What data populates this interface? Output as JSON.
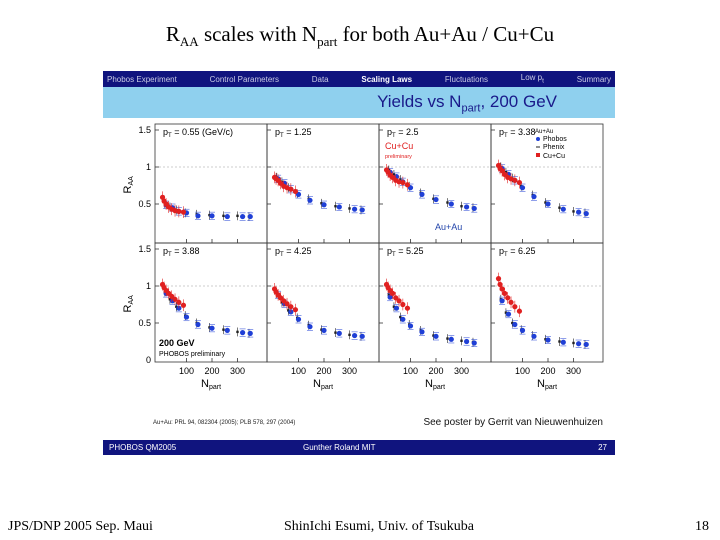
{
  "slide": {
    "title_prefix": "R",
    "title_sub_aa": "AA",
    "title_mid": " scales with N",
    "title_sub_part": "part",
    "title_suffix": " for both Au+Au / Cu+Cu"
  },
  "navbar": {
    "items": [
      "Phobos Experiment",
      "Control Parameters",
      "Data",
      "Scaling Laws",
      "Fluctuations",
      "Low p",
      "Summary"
    ],
    "low_pt_subscript": "t"
  },
  "banner": {
    "prefix": "Yields vs N",
    "sub": "part",
    "suffix": ", 200 GeV"
  },
  "legend": {
    "header": "Au+Au",
    "entries": [
      "Phobos",
      "Phenix",
      "Cu+Cu"
    ],
    "cucu_label": "Cu+Cu",
    "preliminary": "preliminary",
    "auau_label": "Au+Au",
    "energy": "200 GeV",
    "phobos_preliminary": "PHOBOS preliminary"
  },
  "refs": "Au+Au: PRL 94, 082304 (2005); PLB 578, 297 (2004)",
  "poster": "See poster by Gerrit van Nieuwenhuizen",
  "bottom_bar": {
    "left": "PHOBOS QM2005",
    "center": "Gunther Roland   MIT",
    "page": "27"
  },
  "footer": {
    "left": "JPS/DNP 2005 Sep. Maui",
    "center": "ShinIchi Esumi, Univ. of Tsukuba",
    "right": "18"
  },
  "colors": {
    "navy": "#10147e",
    "banner": "#8fd0ee",
    "phobos": "#1f3fd6",
    "phenix": "#222222",
    "cucu": "#e02020",
    "label_blue": "#2244aa"
  },
  "chart_data": {
    "type": "scatter",
    "title": "Yields vs Npart, 200 GeV",
    "ylabel": "RAA",
    "xlabel": "Npart",
    "xlim": [
      0,
      400
    ],
    "ylim": [
      0,
      1.5
    ],
    "xticks": [
      "100",
      "200",
      "300"
    ],
    "yticks": [
      "0",
      "0.5",
      "1",
      "1.5"
    ],
    "ytick_labels_top": [
      "0.5",
      "1",
      "1.5"
    ],
    "panels": [
      {
        "label": "p",
        "sub": "T",
        "value": " = 0.55 (GeV/c)",
        "phobos": [
          [
            20,
            0.49
          ],
          [
            45,
            0.45
          ],
          [
            70,
            0.4
          ],
          [
            100,
            0.38
          ],
          [
            145,
            0.34
          ],
          [
            200,
            0.34
          ],
          [
            260,
            0.33
          ],
          [
            320,
            0.33
          ],
          [
            350,
            0.33
          ]
        ],
        "phenix": [
          [
            15,
            0.5
          ],
          [
            35,
            0.46
          ],
          [
            60,
            0.42
          ],
          [
            95,
            0.38
          ],
          [
            140,
            0.36
          ],
          [
            190,
            0.35
          ],
          [
            245,
            0.34
          ],
          [
            300,
            0.34
          ],
          [
            345,
            0.33
          ]
        ],
        "cucu": [
          [
            6,
            0.59
          ],
          [
            12,
            0.54
          ],
          [
            20,
            0.5
          ],
          [
            30,
            0.46
          ],
          [
            42,
            0.43
          ],
          [
            55,
            0.41
          ],
          [
            70,
            0.4
          ],
          [
            88,
            0.39
          ]
        ]
      },
      {
        "label": "p",
        "sub": "T",
        "value": " = 1.25",
        "phobos": [
          [
            20,
            0.84
          ],
          [
            45,
            0.78
          ],
          [
            70,
            0.7
          ],
          [
            100,
            0.63
          ],
          [
            145,
            0.55
          ],
          [
            200,
            0.49
          ],
          [
            260,
            0.46
          ],
          [
            320,
            0.43
          ],
          [
            350,
            0.42
          ]
        ],
        "phenix": [
          [
            15,
            0.86
          ],
          [
            35,
            0.8
          ],
          [
            60,
            0.72
          ],
          [
            95,
            0.64
          ],
          [
            140,
            0.57
          ],
          [
            190,
            0.51
          ],
          [
            245,
            0.47
          ],
          [
            300,
            0.44
          ],
          [
            345,
            0.42
          ]
        ],
        "cucu": [
          [
            6,
            0.86
          ],
          [
            12,
            0.84
          ],
          [
            20,
            0.82
          ],
          [
            30,
            0.78
          ],
          [
            42,
            0.74
          ],
          [
            55,
            0.72
          ],
          [
            70,
            0.7
          ],
          [
            88,
            0.67
          ]
        ]
      },
      {
        "label": "p",
        "sub": "T",
        "value": " = 2.5",
        "phobos": [
          [
            20,
            0.93
          ],
          [
            45,
            0.87
          ],
          [
            70,
            0.8
          ],
          [
            100,
            0.72
          ],
          [
            145,
            0.63
          ],
          [
            200,
            0.56
          ],
          [
            260,
            0.5
          ],
          [
            320,
            0.46
          ],
          [
            350,
            0.44
          ]
        ],
        "phenix": [
          [
            15,
            0.96
          ],
          [
            35,
            0.9
          ],
          [
            60,
            0.83
          ],
          [
            95,
            0.74
          ],
          [
            140,
            0.65
          ],
          [
            190,
            0.57
          ],
          [
            245,
            0.52
          ],
          [
            300,
            0.47
          ],
          [
            345,
            0.45
          ]
        ],
        "cucu": [
          [
            6,
            0.96
          ],
          [
            12,
            0.93
          ],
          [
            20,
            0.89
          ],
          [
            30,
            0.86
          ],
          [
            42,
            0.82
          ],
          [
            55,
            0.8
          ],
          [
            70,
            0.79
          ],
          [
            88,
            0.76
          ]
        ]
      },
      {
        "label": "p",
        "sub": "T",
        "value": " = 3.38",
        "phobos": [
          [
            20,
            0.98
          ],
          [
            45,
            0.9
          ],
          [
            70,
            0.82
          ],
          [
            100,
            0.72
          ],
          [
            145,
            0.6
          ],
          [
            200,
            0.5
          ],
          [
            260,
            0.43
          ],
          [
            320,
            0.39
          ],
          [
            350,
            0.37
          ]
        ],
        "phenix": [
          [
            15,
            1.0
          ],
          [
            35,
            0.93
          ],
          [
            60,
            0.85
          ],
          [
            95,
            0.74
          ],
          [
            140,
            0.62
          ],
          [
            190,
            0.52
          ],
          [
            245,
            0.45
          ],
          [
            300,
            0.4
          ],
          [
            345,
            0.38
          ]
        ],
        "cucu": [
          [
            6,
            1.02
          ],
          [
            12,
            0.98
          ],
          [
            20,
            0.95
          ],
          [
            30,
            0.9
          ],
          [
            42,
            0.86
          ],
          [
            55,
            0.84
          ],
          [
            70,
            0.82
          ],
          [
            88,
            0.79
          ]
        ]
      },
      {
        "label": "p",
        "sub": "T",
        "value": " = 3.88",
        "phobos": [
          [
            20,
            0.9
          ],
          [
            45,
            0.8
          ],
          [
            70,
            0.7
          ],
          [
            100,
            0.58
          ],
          [
            145,
            0.48
          ],
          [
            200,
            0.43
          ],
          [
            260,
            0.4
          ],
          [
            320,
            0.37
          ],
          [
            350,
            0.36
          ]
        ],
        "phenix": [
          [
            15,
            0.92
          ],
          [
            35,
            0.82
          ],
          [
            60,
            0.72
          ],
          [
            95,
            0.6
          ],
          [
            140,
            0.5
          ],
          [
            190,
            0.44
          ],
          [
            245,
            0.41
          ],
          [
            300,
            0.38
          ],
          [
            345,
            0.36
          ]
        ],
        "cucu": [
          [
            6,
            1.02
          ],
          [
            12,
            0.98
          ],
          [
            20,
            0.94
          ],
          [
            30,
            0.9
          ],
          [
            42,
            0.86
          ],
          [
            55,
            0.82
          ],
          [
            70,
            0.78
          ],
          [
            88,
            0.74
          ]
        ]
      },
      {
        "label": "p",
        "sub": "T",
        "value": " = 4.25",
        "phobos": [
          [
            20,
            0.88
          ],
          [
            45,
            0.76
          ],
          [
            70,
            0.65
          ],
          [
            100,
            0.55
          ],
          [
            145,
            0.45
          ],
          [
            200,
            0.4
          ],
          [
            260,
            0.36
          ],
          [
            320,
            0.33
          ],
          [
            350,
            0.32
          ]
        ],
        "phenix": [
          [
            15,
            0.9
          ],
          [
            35,
            0.78
          ],
          [
            60,
            0.67
          ],
          [
            95,
            0.57
          ],
          [
            140,
            0.47
          ],
          [
            190,
            0.41
          ],
          [
            245,
            0.37
          ],
          [
            300,
            0.34
          ],
          [
            345,
            0.32
          ]
        ],
        "cucu": [
          [
            6,
            0.96
          ],
          [
            12,
            0.92
          ],
          [
            20,
            0.88
          ],
          [
            30,
            0.84
          ],
          [
            42,
            0.8
          ],
          [
            55,
            0.76
          ],
          [
            70,
            0.72
          ],
          [
            88,
            0.68
          ]
        ]
      },
      {
        "label": "p",
        "sub": "T",
        "value": " = 5.25",
        "phobos": [
          [
            20,
            0.85
          ],
          [
            45,
            0.7
          ],
          [
            70,
            0.55
          ],
          [
            100,
            0.46
          ],
          [
            145,
            0.38
          ],
          [
            200,
            0.32
          ],
          [
            260,
            0.28
          ],
          [
            320,
            0.25
          ],
          [
            350,
            0.23
          ]
        ],
        "phenix": [
          [
            15,
            0.88
          ],
          [
            35,
            0.72
          ],
          [
            60,
            0.58
          ],
          [
            95,
            0.48
          ],
          [
            140,
            0.4
          ],
          [
            190,
            0.33
          ],
          [
            245,
            0.29
          ],
          [
            300,
            0.26
          ],
          [
            345,
            0.24
          ]
        ],
        "cucu": [
          [
            6,
            1.02
          ],
          [
            12,
            0.98
          ],
          [
            20,
            0.94
          ],
          [
            30,
            0.9
          ],
          [
            42,
            0.84
          ],
          [
            55,
            0.8
          ],
          [
            70,
            0.75
          ],
          [
            88,
            0.7
          ]
        ]
      },
      {
        "label": "p",
        "sub": "T",
        "value": " = 6.25",
        "phobos": [
          [
            20,
            0.8
          ],
          [
            45,
            0.62
          ],
          [
            70,
            0.48
          ],
          [
            100,
            0.4
          ],
          [
            145,
            0.32
          ],
          [
            200,
            0.27
          ],
          [
            260,
            0.24
          ],
          [
            320,
            0.22
          ],
          [
            350,
            0.21
          ]
        ],
        "phenix": [
          [
            15,
            0.82
          ],
          [
            35,
            0.64
          ],
          [
            60,
            0.5
          ],
          [
            95,
            0.41
          ],
          [
            140,
            0.33
          ],
          [
            190,
            0.28
          ],
          [
            245,
            0.25
          ],
          [
            300,
            0.23
          ],
          [
            345,
            0.21
          ]
        ],
        "cucu": [
          [
            6,
            1.1
          ],
          [
            12,
            1.02
          ],
          [
            20,
            0.96
          ],
          [
            30,
            0.9
          ],
          [
            42,
            0.84
          ],
          [
            55,
            0.78
          ],
          [
            70,
            0.72
          ],
          [
            88,
            0.66
          ]
        ]
      }
    ]
  }
}
